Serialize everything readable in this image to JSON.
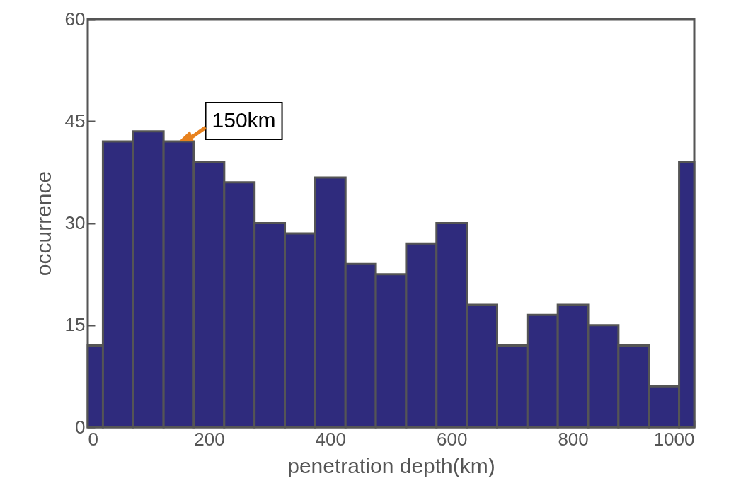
{
  "chart_data": {
    "type": "histogram",
    "xlabel": "penetration depth(km)",
    "ylabel": "occurrence",
    "bins": [
      0,
      25,
      75,
      125,
      175,
      225,
      275,
      325,
      375,
      425,
      475,
      525,
      575,
      625,
      675,
      725,
      775,
      825,
      875,
      925,
      975,
      1000
    ],
    "values": [
      12,
      42,
      43.5,
      42,
      39,
      36,
      30,
      28.5,
      36.7,
      24,
      22.5,
      27,
      30,
      18,
      12,
      16.5,
      18,
      15,
      12,
      6,
      39
    ],
    "color": "#2f2b7d",
    "xlim": [
      0,
      1000
    ],
    "xticks": [
      0,
      200,
      400,
      600,
      800,
      1000
    ],
    "ylim": [
      0,
      60
    ],
    "yticks": [
      0,
      15,
      30,
      45,
      60
    ],
    "grid": false,
    "annotations": [
      {
        "text": "150km",
        "x": 150,
        "y": 42
      }
    ]
  }
}
